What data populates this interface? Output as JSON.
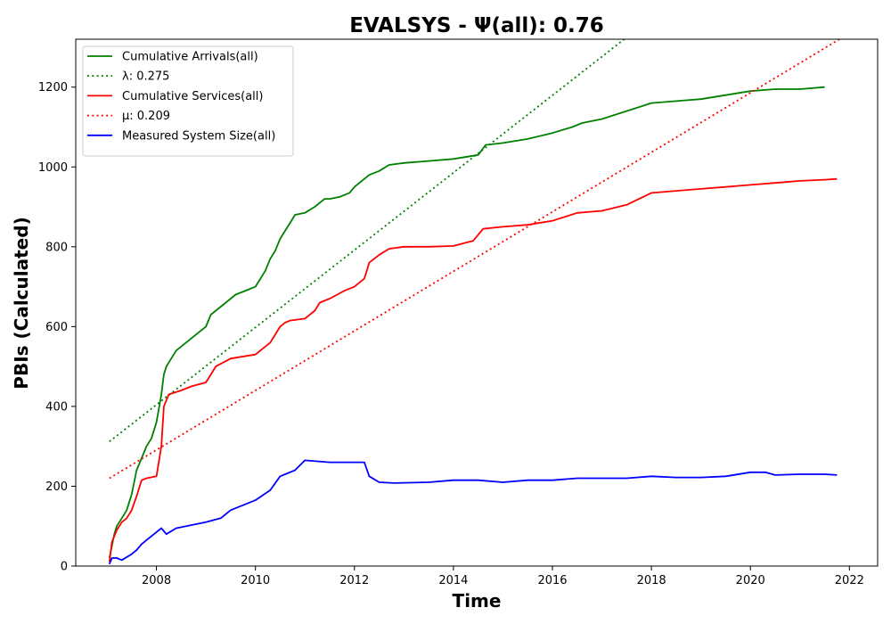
{
  "chart_data": {
    "type": "line",
    "title": "EVALSYS -  Ψ(all): 0.76",
    "xlabel": "Time",
    "ylabel": "PBIs (Calculated)",
    "xlim": [
      2006.37,
      2022.57
    ],
    "ylim": [
      0,
      1320
    ],
    "x_ticks": [
      2008,
      2010,
      2012,
      2014,
      2016,
      2018,
      2020,
      2022
    ],
    "x_tick_labels": [
      "2008",
      "2010",
      "2012",
      "2014",
      "2016",
      "2018",
      "2020",
      "2022"
    ],
    "y_ticks": [
      0,
      200,
      400,
      600,
      800,
      1000,
      1200
    ],
    "y_tick_labels": [
      "0",
      "200",
      "400",
      "600",
      "800",
      "1000",
      "1200"
    ],
    "grid": false,
    "legend_position": "top-left",
    "series": [
      {
        "name": "Cumulative Arrivals(all)",
        "style": "solid",
        "color": "#008000",
        "x": [
          2007.05,
          2007.1,
          2007.15,
          2007.2,
          2007.3,
          2007.4,
          2007.5,
          2007.6,
          2007.7,
          2007.8,
          2007.9,
          2008.0,
          2008.1,
          2008.15,
          2008.2,
          2008.25,
          2008.4,
          2008.6,
          2008.8,
          2009.0,
          2009.1,
          2009.3,
          2009.5,
          2009.6,
          2009.8,
          2010.0,
          2010.2,
          2010.3,
          2010.4,
          2010.5,
          2010.6,
          2010.7,
          2010.8,
          2011.0,
          2011.2,
          2011.4,
          2011.5,
          2011.7,
          2011.9,
          2012.0,
          2012.1,
          2012.2,
          2012.3,
          2012.5,
          2012.7,
          2013.0,
          2013.5,
          2014.0,
          2014.5,
          2014.65,
          2015.0,
          2015.5,
          2016.0,
          2016.4,
          2016.6,
          2017.0,
          2017.5,
          2018.0,
          2018.5,
          2019.0,
          2019.5,
          2020.0,
          2020.5,
          2021.0,
          2021.5
        ],
        "y": [
          20,
          50,
          80,
          100,
          120,
          140,
          180,
          240,
          270,
          300,
          320,
          360,
          430,
          480,
          500,
          510,
          540,
          560,
          580,
          600,
          630,
          650,
          670,
          680,
          690,
          700,
          740,
          770,
          790,
          820,
          840,
          860,
          880,
          885,
          900,
          920,
          920,
          925,
          935,
          950,
          960,
          970,
          980,
          990,
          1005,
          1010,
          1015,
          1020,
          1030,
          1055,
          1060,
          1070,
          1085,
          1100,
          1110,
          1120,
          1140,
          1160,
          1165,
          1170,
          1180,
          1190,
          1195,
          1195,
          1200
        ]
      },
      {
        "name": "λ: 0.275",
        "style": "dotted",
        "color": "#008000",
        "x": [
          2007.05,
          2017.45
        ],
        "y": [
          312,
          1320
        ]
      },
      {
        "name": "Cumulative Services(all)",
        "style": "solid",
        "color": "#ff0000",
        "x": [
          2007.05,
          2007.1,
          2007.2,
          2007.3,
          2007.4,
          2007.5,
          2007.6,
          2007.7,
          2007.8,
          2008.0,
          2008.1,
          2008.15,
          2008.25,
          2008.5,
          2008.7,
          2009.0,
          2009.2,
          2009.5,
          2010.0,
          2010.3,
          2010.5,
          2010.6,
          2010.7,
          2011.0,
          2011.2,
          2011.3,
          2011.5,
          2011.8,
          2012.0,
          2012.2,
          2012.3,
          2012.5,
          2012.7,
          2013.0,
          2013.5,
          2014.0,
          2014.4,
          2014.6,
          2015.0,
          2015.5,
          2016.0,
          2016.5,
          2017.0,
          2017.5,
          2018.0,
          2018.5,
          2019.0,
          2019.5,
          2020.0,
          2020.5,
          2021.0,
          2021.5,
          2021.75
        ],
        "y": [
          10,
          60,
          90,
          110,
          120,
          140,
          175,
          215,
          220,
          225,
          300,
          400,
          430,
          440,
          450,
          460,
          500,
          520,
          530,
          560,
          600,
          610,
          615,
          620,
          640,
          660,
          670,
          690,
          700,
          720,
          760,
          780,
          795,
          800,
          800,
          802,
          815,
          845,
          850,
          855,
          865,
          885,
          890,
          905,
          935,
          940,
          945,
          950,
          955,
          960,
          965,
          968,
          970
        ]
      },
      {
        "name": "μ: 0.209",
        "style": "dotted",
        "color": "#ff0000",
        "x": [
          2007.05,
          2021.8
        ],
        "y": [
          220,
          1320
        ]
      },
      {
        "name": "Measured System Size(all)",
        "style": "solid",
        "color": "#0000ff",
        "x": [
          2007.05,
          2007.1,
          2007.2,
          2007.3,
          2007.5,
          2007.6,
          2007.7,
          2007.8,
          2008.0,
          2008.1,
          2008.2,
          2008.4,
          2008.6,
          2009.0,
          2009.3,
          2009.5,
          2010.0,
          2010.3,
          2010.5,
          2010.8,
          2011.0,
          2011.5,
          2012.0,
          2012.2,
          2012.3,
          2012.5,
          2012.8,
          2013.5,
          2014.0,
          2014.5,
          2015.0,
          2015.5,
          2016.0,
          2016.5,
          2017.0,
          2017.5,
          2018.0,
          2018.5,
          2019.0,
          2019.5,
          2020.0,
          2020.3,
          2020.5,
          2021.0,
          2021.5,
          2021.75
        ],
        "y": [
          5,
          20,
          20,
          15,
          30,
          40,
          55,
          65,
          85,
          95,
          80,
          95,
          100,
          110,
          120,
          140,
          165,
          190,
          225,
          240,
          265,
          260,
          260,
          260,
          225,
          210,
          208,
          210,
          215,
          215,
          210,
          215,
          215,
          220,
          220,
          220,
          225,
          222,
          222,
          225,
          235,
          235,
          228,
          230,
          230,
          228
        ]
      }
    ]
  }
}
